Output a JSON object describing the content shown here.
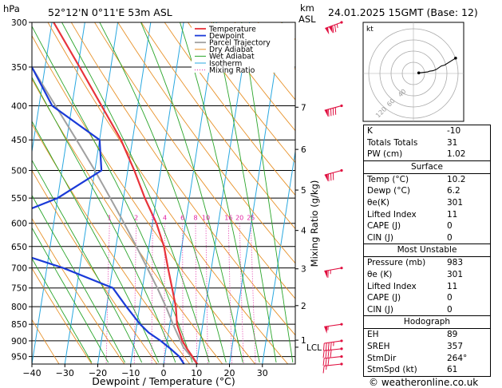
{
  "header": {
    "hpa_label": "hPa",
    "location": "52°12'N  0°11'E  53m  ASL",
    "km_label": "km",
    "asl_label": "ASL",
    "datetime": "24.01.2025  15GMT  (Base: 12)"
  },
  "footer": {
    "credit": "© weatheronline.co.uk"
  },
  "colors": {
    "temperature": "#e8333a",
    "dewpoint": "#1a3ad8",
    "parcel": "#a0a0a0",
    "dry_adiabat": "#e8922a",
    "wet_adiabat": "#2aa52a",
    "isotherm": "#2aa8e0",
    "mixing_ratio": "#e020a0",
    "wind_barb": "#e01040"
  },
  "chart_data": {
    "type": "line",
    "xlabel": "Dewpoint / Temperature (°C)",
    "ylabel_right": "Mixing Ratio (g/kg)",
    "x_ticks": [
      -40,
      -30,
      -20,
      -10,
      0,
      10,
      20,
      30
    ],
    "x_tick_labels": [
      "−40",
      "−30",
      "−20",
      "−10",
      "0",
      "10",
      "20",
      "30"
    ],
    "p_levels": [
      300,
      350,
      400,
      450,
      500,
      550,
      600,
      650,
      700,
      750,
      800,
      850,
      900,
      950
    ],
    "xlim": [
      -40,
      40
    ],
    "plim": [
      300,
      975
    ],
    "y_scale": "log",
    "km_ticks": [
      {
        "km": "1",
        "p": 898
      },
      {
        "km": "2",
        "p": 797
      },
      {
        "km": "3",
        "p": 702
      },
      {
        "km": "4",
        "p": 615
      },
      {
        "km": "5",
        "p": 535
      },
      {
        "km": "6",
        "p": 465
      },
      {
        "km": "7",
        "p": 402
      }
    ],
    "lcl": {
      "label": "LCL",
      "p": 920
    },
    "mixing_ratio_labels": [
      "1",
      "2",
      "3",
      "4",
      "6",
      "8",
      "10",
      "16",
      "20",
      "25"
    ],
    "mixing_ratio_values": [
      1,
      2,
      3,
      4,
      6,
      8,
      10,
      16,
      20,
      25
    ],
    "series": [
      {
        "name": "Temperature",
        "p": [
          975,
          950,
          925,
          900,
          850,
          800,
          750,
          700,
          650,
          600,
          550,
          500,
          450,
          400,
          350,
          300
        ],
        "t": [
          10.2,
          8.4,
          6.4,
          4.6,
          2.2,
          1.0,
          -1.0,
          -3.2,
          -5.4,
          -8.8,
          -13.5,
          -18.0,
          -23.5,
          -31.0,
          -39.5,
          -49.5
        ]
      },
      {
        "name": "Dewpoint",
        "p": [
          975,
          950,
          925,
          900,
          875,
          850,
          800,
          750,
          700,
          650,
          600,
          550,
          500,
          450,
          400,
          350,
          300
        ],
        "t": [
          6.2,
          4.4,
          1.4,
          -2.0,
          -6.0,
          -9.0,
          -14.0,
          -19.0,
          -35.0,
          -56.0,
          -58.0,
          -40.0,
          -28.0,
          -30.0,
          -46.0,
          -54.0,
          -62.0
        ]
      },
      {
        "name": "Parcel Trajectory",
        "p": [
          975,
          920,
          850,
          800,
          750,
          700,
          650,
          600,
          550,
          500,
          450,
          400,
          350,
          300
        ],
        "t": [
          10.2,
          5.2,
          1.0,
          -2.0,
          -5.5,
          -9.5,
          -13.8,
          -18.6,
          -24.0,
          -30.0,
          -37.0,
          -45.0,
          -54.0,
          -64.0
        ]
      }
    ],
    "legend": [
      "Temperature",
      "Dewpoint",
      "Parcel Trajectory",
      "Dry Adiabat",
      "Wet Adiabat",
      "Isotherm",
      "Mixing Ratio"
    ],
    "legend_placement": "top-right",
    "wind_barbs": [
      {
        "p": 300,
        "speed_kt": 125,
        "dir": 250
      },
      {
        "p": 400,
        "speed_kt": 90,
        "dir": 255
      },
      {
        "p": 500,
        "speed_kt": 80,
        "dir": 255
      },
      {
        "p": 700,
        "speed_kt": 65,
        "dir": 260
      },
      {
        "p": 850,
        "speed_kt": 55,
        "dir": 262
      },
      {
        "p": 900,
        "speed_kt": 45,
        "dir": 262
      },
      {
        "p": 925,
        "speed_kt": 40,
        "dir": 264
      },
      {
        "p": 950,
        "speed_kt": 30,
        "dir": 264
      },
      {
        "p": 975,
        "speed_kt": 15,
        "dir": 264
      }
    ]
  },
  "hodograph": {
    "label": "kt",
    "ring_labels": [
      "40",
      "60",
      "120"
    ]
  },
  "indices": {
    "basic": [
      {
        "label": "K",
        "value": "-10"
      },
      {
        "label": "Totals Totals",
        "value": "31"
      },
      {
        "label": "PW (cm)",
        "value": "1.02"
      }
    ],
    "surface_title": "Surface",
    "surface": [
      {
        "label": "Temp (°C)",
        "value": "10.2"
      },
      {
        "label": "Dewp (°C)",
        "value": "6.2"
      },
      {
        "label": "θe(K)",
        "value": "301"
      },
      {
        "label": "Lifted Index",
        "value": "11"
      },
      {
        "label": "CAPE (J)",
        "value": "0"
      },
      {
        "label": "CIN (J)",
        "value": "0"
      }
    ],
    "unstable_title": "Most Unstable",
    "unstable": [
      {
        "label": "Pressure (mb)",
        "value": "983"
      },
      {
        "label": "θe (K)",
        "value": "301"
      },
      {
        "label": "Lifted Index",
        "value": "11"
      },
      {
        "label": "CAPE (J)",
        "value": "0"
      },
      {
        "label": "CIN (J)",
        "value": "0"
      }
    ],
    "hodo_title": "Hodograph",
    "hodo": [
      {
        "label": "EH",
        "value": "89"
      },
      {
        "label": "SREH",
        "value": "357"
      },
      {
        "label": "StmDir",
        "value": "264°"
      },
      {
        "label": "StmSpd (kt)",
        "value": "61"
      }
    ]
  }
}
